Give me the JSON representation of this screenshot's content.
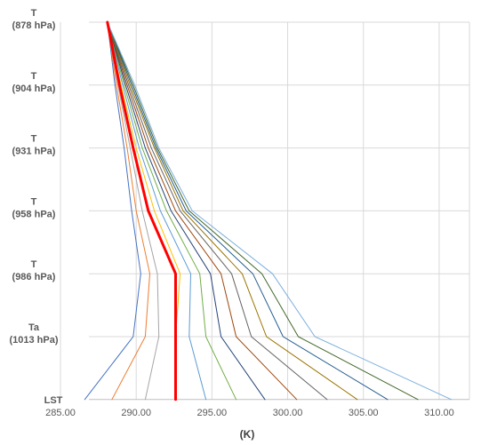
{
  "chart_data": {
    "type": "line",
    "title": "",
    "xlabel": "(K)",
    "ylabel": "",
    "xlim": [
      285,
      312
    ],
    "x_ticks": [
      "285.00",
      "290.00",
      "295.00",
      "300.00",
      "305.00",
      "310.00"
    ],
    "x_tick_values": [
      285,
      290,
      295,
      300,
      305,
      310
    ],
    "grid": {
      "vertical": true,
      "horizontal": true
    },
    "legend": "none",
    "levels": [
      {
        "line1": "T",
        "line2": "(878 hPa)"
      },
      {
        "line1": "T",
        "line2": "(904 hPa)"
      },
      {
        "line1": "T",
        "line2": "(931 hPa)"
      },
      {
        "line1": "T",
        "line2": "(958 hPa)"
      },
      {
        "line1": "T",
        "line2": "(986 hPa)"
      },
      {
        "line1": "Ta",
        "line2": "(1013 hPa)"
      },
      {
        "line1": "LST",
        "line2": ""
      }
    ],
    "series": [
      {
        "color": "#4472c4",
        "width": 1,
        "values": [
          288.1,
          288.6,
          289.2,
          289.7,
          290.3,
          289.8,
          286.6
        ]
      },
      {
        "color": "#ed7d31",
        "width": 1,
        "values": [
          288.1,
          288.7,
          289.4,
          290.0,
          290.9,
          290.6,
          288.4
        ]
      },
      {
        "color": "#a5a5a5",
        "width": 1,
        "values": [
          288.1,
          288.8,
          289.6,
          290.4,
          291.4,
          291.5,
          290.6
        ]
      },
      {
        "color": "#ff0000",
        "width": 3,
        "values": [
          288.1,
          288.9,
          289.8,
          290.8,
          292.6,
          292.6,
          292.6
        ]
      },
      {
        "color": "#ffc000",
        "width": 1,
        "values": [
          288.1,
          289.0,
          290.0,
          291.2,
          292.9,
          292.6,
          292.6
        ]
      },
      {
        "color": "#5b9bd5",
        "width": 1,
        "values": [
          288.1,
          289.1,
          290.2,
          291.6,
          293.6,
          293.5,
          294.6
        ]
      },
      {
        "color": "#70ad47",
        "width": 1,
        "values": [
          288.1,
          289.2,
          290.4,
          292.0,
          294.2,
          294.6,
          296.6
        ]
      },
      {
        "color": "#264478",
        "width": 1,
        "values": [
          288.1,
          289.3,
          290.6,
          292.3,
          294.9,
          295.6,
          298.5
        ]
      },
      {
        "color": "#9e480e",
        "width": 1,
        "values": [
          288.1,
          289.4,
          290.8,
          292.6,
          295.6,
          296.6,
          300.6
        ]
      },
      {
        "color": "#636363",
        "width": 1,
        "values": [
          288.1,
          289.5,
          291.0,
          292.9,
          296.3,
          297.6,
          302.6
        ]
      },
      {
        "color": "#997300",
        "width": 1,
        "values": [
          288.1,
          289.6,
          291.2,
          293.1,
          297.0,
          298.6,
          304.6
        ]
      },
      {
        "color": "#255e91",
        "width": 1,
        "values": [
          288.1,
          289.7,
          291.3,
          293.3,
          297.7,
          299.7,
          306.6
        ]
      },
      {
        "color": "#43682b",
        "width": 1,
        "values": [
          288.1,
          289.8,
          291.4,
          293.5,
          298.3,
          300.7,
          308.6
        ]
      },
      {
        "color": "#7cafdd",
        "width": 1,
        "values": [
          288.1,
          289.9,
          291.5,
          293.7,
          299.0,
          301.8,
          310.8
        ]
      }
    ]
  }
}
